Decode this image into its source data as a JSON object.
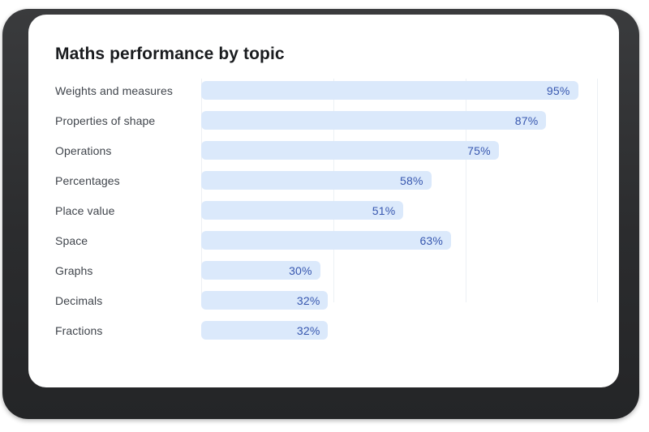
{
  "card": {
    "title": "Maths performance by topic"
  },
  "chart_data": {
    "type": "bar",
    "orientation": "horizontal",
    "title": "Maths performance by topic",
    "categories": [
      "Weights and measures",
      "Properties of shape",
      "Operations",
      "Percentages",
      "Place value",
      "Space",
      "Graphs",
      "Decimals",
      "Fractions"
    ],
    "values": [
      95,
      87,
      75,
      58,
      51,
      63,
      30,
      32,
      32
    ],
    "value_labels": [
      "95%",
      "87%",
      "75%",
      "58%",
      "51%",
      "63%",
      "30%",
      "32%",
      "32%"
    ],
    "xlim": [
      0,
      100
    ],
    "grid": "vertical-only",
    "gridline_positions_pct": [
      0,
      33.33,
      66.67,
      100
    ],
    "legend": "none",
    "colors": {
      "bar_fill": "#dbe9fb",
      "value_text": "#3757af",
      "category_label": "#40454c",
      "title_text": "#1a1c1f",
      "gridline": "#ecf0f4",
      "card_background": "#ffffff",
      "frame_background": "#2b2c2e",
      "page_background": "#ffffff"
    }
  }
}
